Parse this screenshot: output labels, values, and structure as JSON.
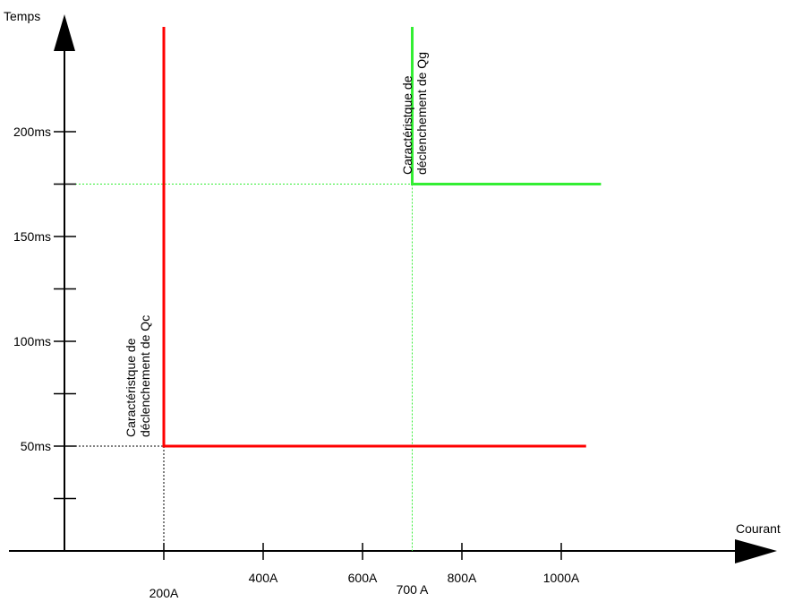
{
  "chart_data": {
    "type": "line",
    "title": "",
    "xlabel": "Courant",
    "ylabel": "Temps",
    "x_ticks": [
      {
        "value": 200,
        "label": "200A"
      },
      {
        "value": 400,
        "label": "400A"
      },
      {
        "value": 600,
        "label": "600A"
      },
      {
        "value": 700,
        "label": "700 A"
      },
      {
        "value": 800,
        "label": "800A"
      },
      {
        "value": 1000,
        "label": "1000A"
      }
    ],
    "y_ticks": [
      {
        "value": 25,
        "label": ""
      },
      {
        "value": 50,
        "label": "50ms"
      },
      {
        "value": 75,
        "label": ""
      },
      {
        "value": 100,
        "label": "100ms"
      },
      {
        "value": 125,
        "label": ""
      },
      {
        "value": 150,
        "label": "150ms"
      },
      {
        "value": 175,
        "label": ""
      },
      {
        "value": 200,
        "label": "200ms"
      }
    ],
    "xlim": [
      0,
      1250
    ],
    "ylim": [
      0,
      250
    ],
    "grid": false,
    "series": [
      {
        "annotation": [
          "Caractéristque de",
          "déclenchement de Qc"
        ],
        "color": "#ff0000",
        "points": [
          [
            200,
            250
          ],
          [
            200,
            50
          ],
          [
            1050,
            50
          ]
        ]
      },
      {
        "annotation": [
          "Caractéristque de",
          "déclenchement de Qg"
        ],
        "color": "#33ee33",
        "points": [
          [
            700,
            250
          ],
          [
            700,
            175
          ],
          [
            1080,
            175
          ]
        ]
      }
    ],
    "reference_lines": [
      {
        "color": "#000000",
        "points": [
          [
            0,
            50
          ],
          [
            200,
            50
          ]
        ]
      },
      {
        "color": "#000000",
        "points": [
          [
            200,
            50
          ],
          [
            200,
            0
          ]
        ]
      },
      {
        "color": "#33ee33",
        "points": [
          [
            0,
            175
          ],
          [
            700,
            175
          ]
        ]
      },
      {
        "color": "#33ee33",
        "points": [
          [
            700,
            175
          ],
          [
            700,
            0
          ]
        ]
      }
    ]
  }
}
